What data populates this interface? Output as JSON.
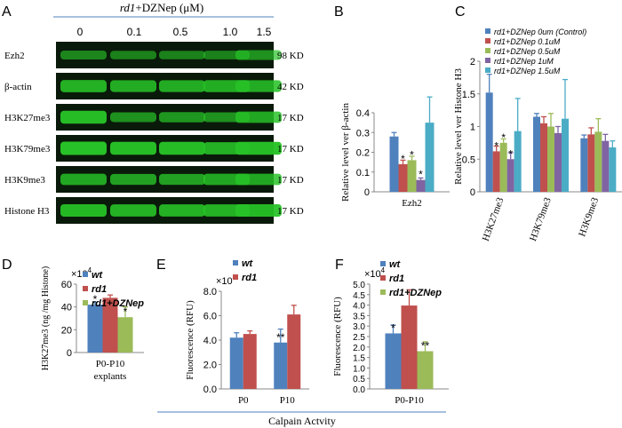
{
  "colors": {
    "blue": "#4f81bd",
    "red": "#c0504d",
    "green": "#9bbb59",
    "purple": "#8064a2",
    "cyan": "#4bacc6",
    "band": "#27c227",
    "blot_bg": "#0a1a0a"
  },
  "panel_letters": [
    "A",
    "B",
    "C",
    "D",
    "E",
    "F"
  ],
  "panelA": {
    "header_em": "rd1",
    "header_rest": "+DZNep (μM)",
    "concentrations": [
      "0",
      "0.1",
      "0.5",
      "1.0",
      "1.5"
    ],
    "rows": [
      {
        "label": "Ezh2",
        "size": "98 KD",
        "intensity": [
          0.45,
          0.4,
          0.4,
          0.42,
          0.55
        ]
      },
      {
        "label": "β-actin",
        "size": "42 KD",
        "intensity": [
          0.85,
          0.8,
          0.8,
          0.82,
          0.8
        ]
      },
      {
        "label": "H3K27me3",
        "size": "17 KD",
        "intensity": [
          0.95,
          0.55,
          0.6,
          0.55,
          0.75
        ]
      },
      {
        "label": "H3K79me3",
        "size": "17 KD",
        "intensity": [
          1.0,
          0.95,
          0.95,
          0.85,
          0.95
        ]
      },
      {
        "label": "H3K9me3",
        "size": "17 KD",
        "intensity": [
          0.75,
          0.7,
          0.7,
          0.75,
          0.75
        ]
      },
      {
        "label": "Histone H3",
        "size": "17 KD",
        "intensity": [
          0.9,
          0.85,
          0.85,
          0.85,
          0.9
        ]
      }
    ]
  },
  "chart_data": [
    {
      "id": "B",
      "type": "bar",
      "categories": [
        "Ezh2"
      ],
      "series": [
        {
          "values": [
            0.28
          ],
          "err": [
            0.02
          ]
        },
        {
          "values": [
            0.14
          ],
          "err": [
            0.02
          ]
        },
        {
          "values": [
            0.16
          ],
          "err": [
            0.02
          ]
        },
        {
          "values": [
            0.06
          ],
          "err": [
            0.01
          ]
        },
        {
          "values": [
            0.35
          ],
          "err": [
            0.13
          ]
        }
      ],
      "stars": [
        "",
        "*",
        "*",
        "*",
        ""
      ],
      "ylabel": "Relative level ver β-actin",
      "ylim": [
        0,
        0.4
      ],
      "yticks": [
        "0",
        "0.1",
        "0.2",
        "0.3",
        "0.4"
      ]
    },
    {
      "id": "C",
      "type": "bar",
      "categories": [
        "H3K27me3",
        "H3K79me3",
        "H3K9me3"
      ],
      "series": [
        {
          "name": "rd1+DZNep 0um (Control)",
          "values": [
            1.52,
            1.15,
            0.82
          ],
          "err": [
            0.28,
            0.05,
            0.05
          ]
        },
        {
          "name": "rd1+DZNep 0.1uM",
          "values": [
            0.62,
            1.05,
            0.88
          ],
          "err": [
            0.08,
            0.1,
            0.1
          ]
        },
        {
          "name": "rd1+DZNep 0.5uM",
          "values": [
            0.75,
            1.0,
            0.92
          ],
          "err": [
            0.06,
            0.2,
            0.2
          ]
        },
        {
          "name": "rd1+DZNep 1uM",
          "values": [
            0.5,
            0.9,
            0.78
          ],
          "err": [
            0.1,
            0.1,
            0.1
          ]
        },
        {
          "name": "rd1+DZNep 1.5uM",
          "values": [
            0.93,
            1.12,
            0.68
          ],
          "err": [
            0.5,
            0.6,
            0.1
          ]
        }
      ],
      "stars": [
        [
          "",
          "*",
          "*",
          "*",
          ""
        ],
        [
          "",
          "",
          "",
          "",
          ""
        ],
        [
          "",
          "",
          "",
          "",
          ""
        ]
      ],
      "ylabel": "Relative level ver Histone H3",
      "ylim": [
        0,
        2
      ],
      "yticks": [
        "0",
        "0.5",
        "1",
        "1.5",
        "2"
      ]
    },
    {
      "id": "D",
      "type": "bar",
      "categories": [
        "P0-P10 explants"
      ],
      "category_lines": [
        "P0-P10",
        "explants"
      ],
      "series": [
        {
          "name": "wt",
          "values": [
            42
          ],
          "err": [
            2
          ]
        },
        {
          "name": "rd1",
          "values": [
            48
          ],
          "err": [
            2.5
          ]
        },
        {
          "name": "rd1+DZNep",
          "values": [
            31
          ],
          "err": [
            9
          ]
        }
      ],
      "stars": [
        "*",
        "",
        "*"
      ],
      "ylabel": "H3K27me3 (ng /mg Histone)",
      "multiplier": "×10",
      "multiplier_exp": "4",
      "ylim": [
        0,
        60
      ],
      "yticks": [
        "0",
        "20",
        "40",
        "60"
      ]
    },
    {
      "id": "E",
      "type": "bar",
      "categories": [
        "P0",
        "P10"
      ],
      "series": [
        {
          "name": "wt",
          "values": [
            4.2,
            3.8
          ],
          "err": [
            0.4,
            1.1
          ]
        },
        {
          "name": "rd1",
          "values": [
            4.5,
            6.1
          ],
          "err": [
            0.25,
            0.75
          ]
        }
      ],
      "stars": [
        [
          "",
          ""
        ],
        [
          "**",
          ""
        ]
      ],
      "ylabel": "Fluorescence (RFU)",
      "multiplier": "×10",
      "multiplier_exp": "4",
      "ylim": [
        0,
        8
      ],
      "yticks": [
        "0.0",
        "2.0",
        "4.0",
        "6.0",
        "8.0"
      ]
    },
    {
      "id": "F",
      "type": "bar",
      "categories": [
        "P0-P10"
      ],
      "series": [
        {
          "name": "wt",
          "values": [
            2.65
          ],
          "err": [
            0.4
          ]
        },
        {
          "name": "rd1",
          "values": [
            3.98
          ],
          "err": [
            0.75
          ]
        },
        {
          "name": "rd1+DZNep",
          "values": [
            1.8
          ],
          "err": [
            0.45
          ]
        }
      ],
      "stars": [
        "*",
        "",
        "**"
      ],
      "ylabel": "Fluorescence (RFU)",
      "multiplier": "×10",
      "multiplier_exp": "4",
      "ylim": [
        0,
        5
      ],
      "yticks": [
        "0.0",
        "0.5",
        "1.0",
        "1.5",
        "2.0",
        "2.5",
        "3.0",
        "3.5",
        "4.0",
        "4.5",
        "5.0"
      ]
    }
  ],
  "bottom_label": "Calpain Actvity"
}
